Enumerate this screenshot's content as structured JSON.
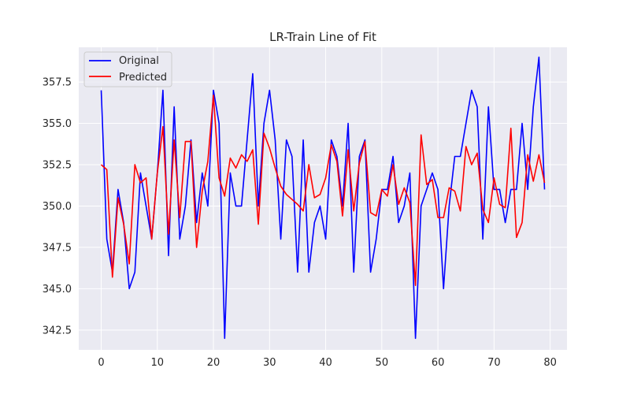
{
  "chart_data": {
    "type": "line",
    "title": "LR-Train Line of Fit",
    "xlabel": "",
    "ylabel": "",
    "xlim": [
      -4,
      83
    ],
    "ylim": [
      341.3,
      359.6
    ],
    "xticks": [
      0,
      10,
      20,
      30,
      40,
      50,
      60,
      70,
      80
    ],
    "yticks": [
      342.5,
      345.0,
      347.5,
      350.0,
      352.5,
      355.0,
      357.5
    ],
    "ytick_labels": [
      "342.5",
      "345.0",
      "347.5",
      "350.0",
      "352.5",
      "355.0",
      "357.5"
    ],
    "grid": true,
    "legend_position": "top-left",
    "x": [
      0,
      1,
      2,
      3,
      4,
      5,
      6,
      7,
      8,
      9,
      10,
      11,
      12,
      13,
      14,
      15,
      16,
      17,
      18,
      19,
      20,
      21,
      22,
      23,
      24,
      25,
      26,
      27,
      28,
      29,
      30,
      31,
      32,
      33,
      34,
      35,
      36,
      37,
      38,
      39,
      40,
      41,
      42,
      43,
      44,
      45,
      46,
      47,
      48,
      49,
      50,
      51,
      52,
      53,
      54,
      55,
      56,
      57,
      58,
      59,
      60,
      61,
      62,
      63,
      64,
      65,
      66,
      67,
      68,
      69,
      70,
      71,
      72,
      73,
      74,
      75,
      76,
      77,
      78,
      79
    ],
    "series": [
      {
        "name": "Original",
        "color": "#0000ff",
        "values": [
          357,
          348,
          346,
          351,
          349,
          345,
          346,
          352,
          350,
          348,
          352,
          357,
          347,
          356,
          348,
          350,
          354,
          349,
          352,
          350,
          357,
          355,
          342,
          352,
          350,
          350,
          354,
          358,
          350,
          355,
          357,
          354,
          348,
          354,
          353,
          346,
          354,
          346,
          349,
          350,
          348,
          354,
          353,
          350,
          355,
          346,
          353,
          354,
          346,
          348,
          351,
          351,
          353,
          349,
          350,
          352,
          342,
          350,
          351,
          352,
          351,
          345,
          350,
          353,
          353,
          355,
          357,
          356,
          348,
          356,
          351,
          351,
          349,
          351,
          351,
          355,
          351,
          356,
          359,
          351
        ]
      },
      {
        "name": "Predicted",
        "color": "#ff0000",
        "values": [
          352.5,
          352.2,
          345.7,
          350.5,
          348.9,
          346.5,
          352.5,
          351.4,
          351.7,
          348.0,
          352.0,
          354.8,
          348.3,
          354.0,
          349.3,
          353.9,
          353.9,
          347.5,
          350.9,
          352.7,
          356.7,
          351.7,
          350.6,
          352.9,
          352.3,
          353.1,
          352.7,
          353.4,
          348.9,
          354.4,
          353.5,
          352.3,
          351.2,
          350.7,
          350.4,
          350.1,
          349.7,
          352.5,
          350.5,
          350.7,
          351.7,
          353.7,
          352.7,
          349.4,
          353.4,
          349.7,
          352.6,
          353.9,
          349.6,
          349.4,
          351.0,
          350.6,
          352.5,
          350.1,
          351.1,
          350.2,
          345.2,
          354.3,
          351.3,
          351.6,
          349.3,
          349.3,
          351.1,
          350.9,
          349.7,
          353.6,
          352.5,
          353.2,
          349.8,
          349.0,
          351.7,
          350.1,
          349.9,
          354.7,
          348.1,
          349.0,
          353.1,
          351.5,
          353.1,
          351.4
        ]
      }
    ]
  }
}
